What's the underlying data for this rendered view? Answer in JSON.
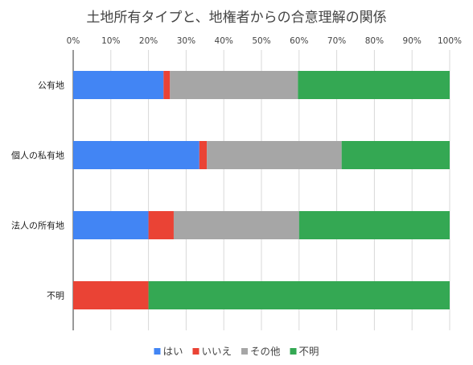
{
  "chart_data": {
    "type": "bar",
    "orientation": "horizontal",
    "stacked": "percent",
    "title": "土地所有タイプと、地権者からの合意理解の関係",
    "xlabel": "",
    "ylabel": "",
    "xlim": [
      0,
      100
    ],
    "x_ticks": [
      "0%",
      "10%",
      "20%",
      "30%",
      "40%",
      "50%",
      "60%",
      "70%",
      "80%",
      "90%",
      "100%"
    ],
    "grid": true,
    "legend_position": "bottom",
    "categories": [
      "公有地",
      "個人の私有地",
      "法人の所有地",
      "不明"
    ],
    "series": [
      {
        "name": "はい",
        "color": "#4285f4",
        "values": [
          24,
          33.5,
          20,
          0
        ]
      },
      {
        "name": "いいえ",
        "color": "#ea4335",
        "values": [
          1.7,
          2,
          6.7,
          20
        ]
      },
      {
        "name": "その他",
        "color": "#a6a6a6",
        "values": [
          34,
          35.8,
          33.3,
          0
        ]
      },
      {
        "name": "不明",
        "color": "#34a853",
        "values": [
          40.3,
          28.7,
          40,
          80
        ]
      }
    ]
  }
}
